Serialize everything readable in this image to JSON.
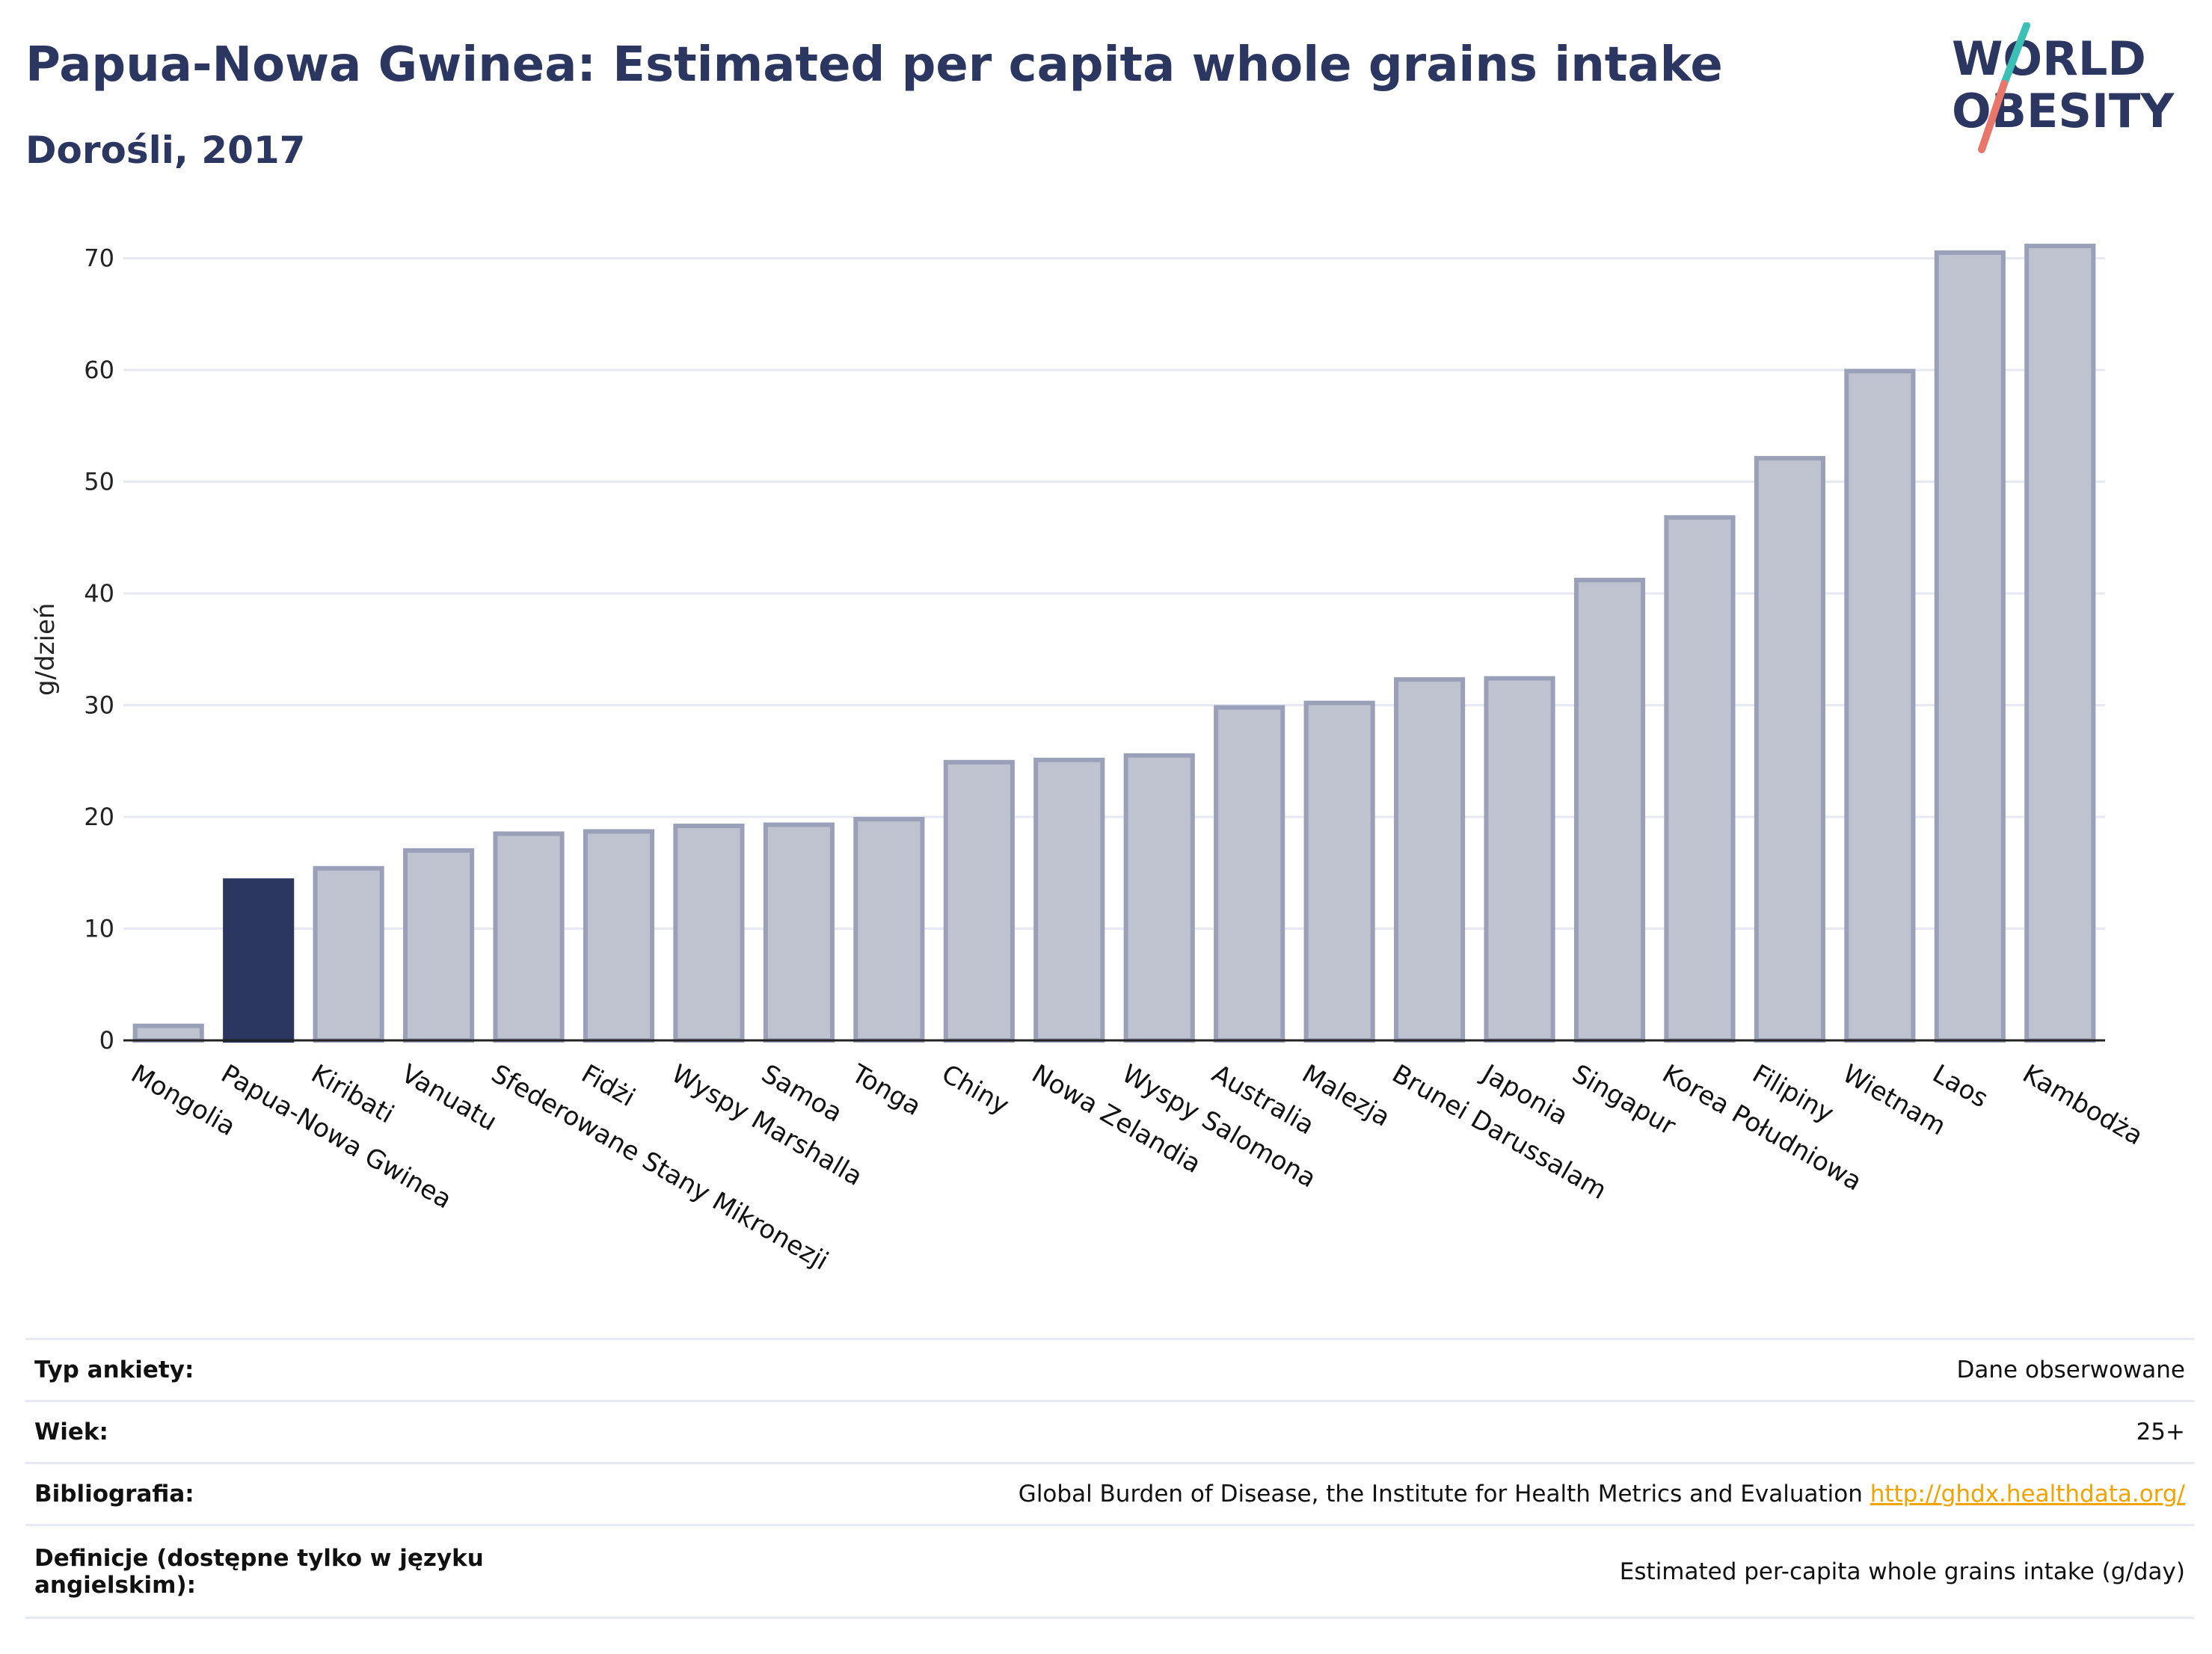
{
  "header": {
    "title": "Papua-Nowa Gwinea: Estimated per capita whole grains intake",
    "subtitle": "Dorośli, 2017"
  },
  "logo": {
    "line1": "WORLD",
    "line2": "OBESITY"
  },
  "colors": {
    "highlight": "#2b3661",
    "bar": "#bfc3d0",
    "bar_border": "#9aa0b8",
    "grid": "#e6e9f2",
    "logo_text": "#2b3661",
    "logo_slash_top": "#3cbfb4",
    "logo_slash_bottom": "#e8766a",
    "link": "#f2a300"
  },
  "chart_data": {
    "type": "bar",
    "ylabel": "g/dzień",
    "ylim": [
      0,
      70
    ],
    "yticks": [
      0,
      10,
      20,
      30,
      40,
      50,
      60,
      70
    ],
    "grid": true,
    "highlight": "Papua-Nowa Gwinea",
    "categories": [
      "Mongolia",
      "Papua-Nowa Gwinea",
      "Kiribati",
      "Vanuatu",
      "Sfederowane Stany Mikronezji",
      "Fidżi",
      "Wyspy Marshalla",
      "Samoa",
      "Tonga",
      "Chiny",
      "Nowa Zelandia",
      "Wyspy Salomona",
      "Australia",
      "Malezja",
      "Brunei Darussalam",
      "Japonia",
      "Singapur",
      "Korea Południowa",
      "Filipiny",
      "Wietnam",
      "Laos",
      "Kambodża"
    ],
    "values": [
      1.3,
      14.3,
      15.4,
      17.0,
      18.5,
      18.7,
      19.2,
      19.3,
      19.8,
      24.9,
      25.1,
      25.5,
      29.8,
      30.2,
      32.3,
      32.4,
      41.2,
      46.8,
      52.1,
      59.9,
      70.5,
      71.1
    ]
  },
  "info": {
    "rows": [
      {
        "label": "Typ ankiety:",
        "value": "Dane obserwowane"
      },
      {
        "label": "Wiek:",
        "value": "25+"
      },
      {
        "label": "Bibliografia:",
        "value": "Global Burden of Disease, the Institute for Health Metrics and Evaluation",
        "link": "http://ghdx.healthdata.org/"
      },
      {
        "label": "Definicje (dostępne tylko w języku angielskim):",
        "value": "Estimated per-capita whole grains intake (g/day)"
      }
    ]
  }
}
